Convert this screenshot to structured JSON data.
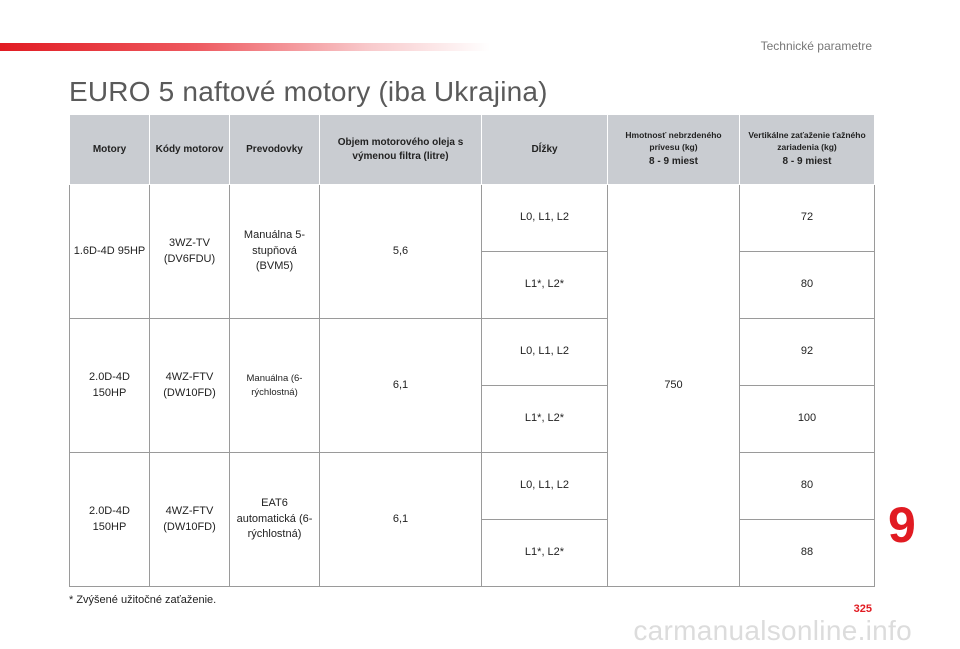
{
  "header": {
    "section_title": "Technické parametre",
    "accent_color": "#e11b22"
  },
  "page_title": "EURO 5 naftové motory (iba Ukrajina)",
  "table": {
    "headers": {
      "engines": "Motory",
      "codes": "Kódy motorov",
      "gearboxes": "Prevodovky",
      "oil": "Objem motorového oleja s výmenou filtra (litre)",
      "lengths": "Dĺžky",
      "trailer": "Hmotnosť nebrzdeného prívesu (kg)",
      "trailer_sub": "8 - 9 miest",
      "nose": "Vertikálne zaťaženie ťažného zariadenia (kg)",
      "nose_sub": "8 - 9 miest"
    },
    "rows": [
      {
        "engine": "1.6D-4D 95HP",
        "code": "3WZ-TV (DV6FDU)",
        "gearbox": "Manuálna 5-stupňová (BVM5)",
        "oil": "5,6",
        "lengths": [
          "L0, L1, L2",
          "L1*, L2*"
        ],
        "nose": [
          "72",
          "80"
        ]
      },
      {
        "engine": "2.0D-4D 150HP",
        "code": "4WZ-FTV (DW10FD)",
        "gearbox": "Manuálna (6-rýchlostná)",
        "oil": "6,1",
        "lengths": [
          "L0, L1, L2",
          "L1*, L2*"
        ],
        "nose": [
          "92",
          "100"
        ]
      },
      {
        "engine": "2.0D-4D 150HP",
        "code": "4WZ-FTV (DW10FD)",
        "gearbox": "EAT6 automatická (6-rýchlostná)",
        "oil": "6,1",
        "lengths": [
          "L0, L1, L2",
          "L1*, L2*"
        ],
        "nose": [
          "80",
          "88"
        ]
      }
    ],
    "trailer_value": "750"
  },
  "footnote": "* Zvýšené užitočné zaťaženie.",
  "chapter_number": "9",
  "page_number": "325",
  "watermark": "carmanualsonline.info"
}
